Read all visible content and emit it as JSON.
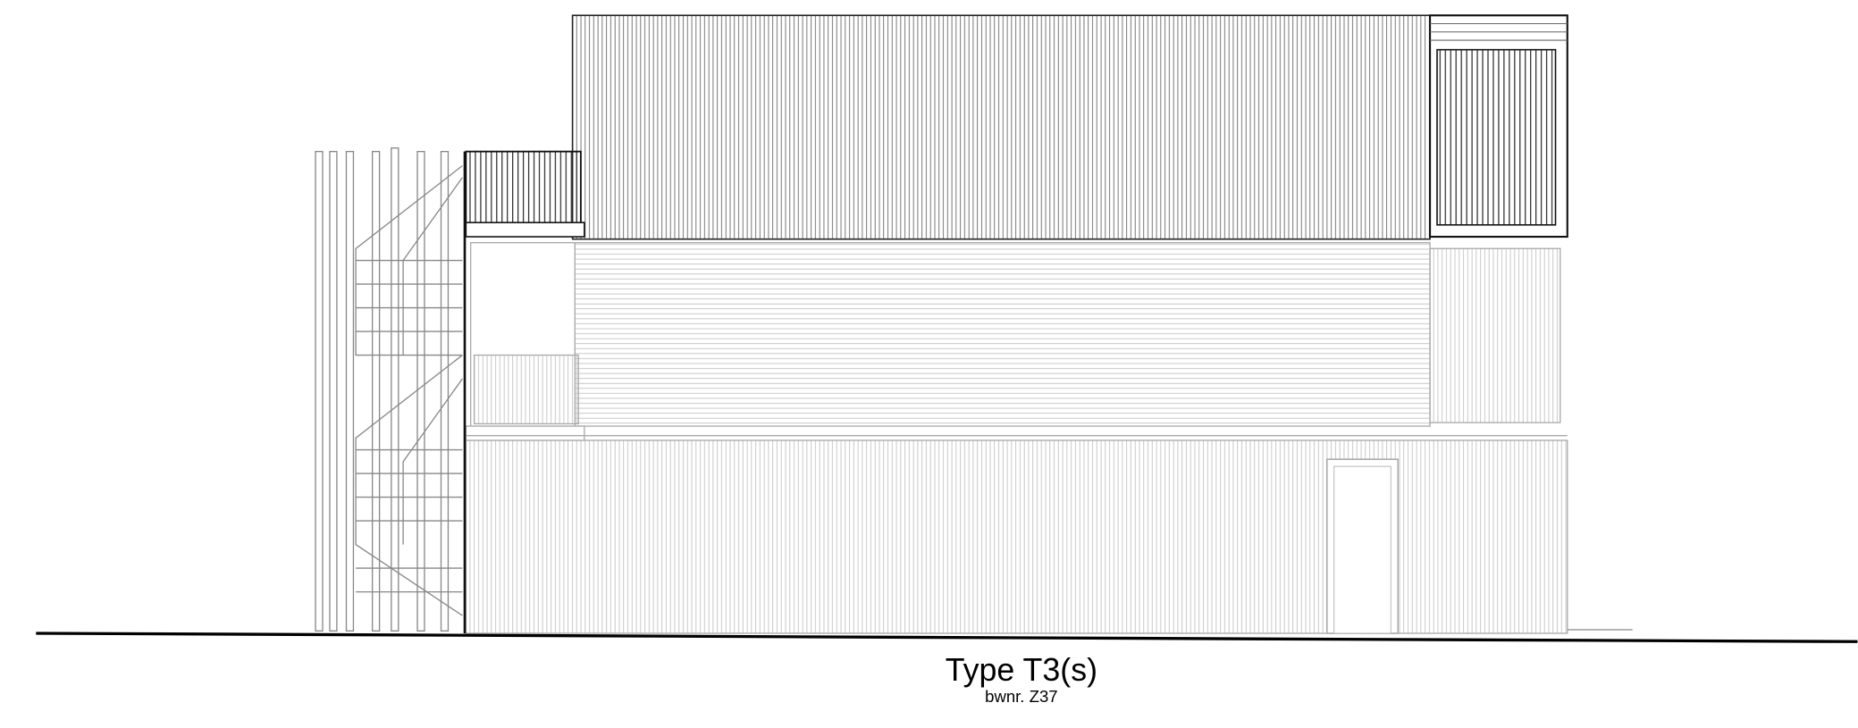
{
  "drawing": {
    "title": "Type T3(s)",
    "subtitle": "bwnr. Z37"
  }
}
